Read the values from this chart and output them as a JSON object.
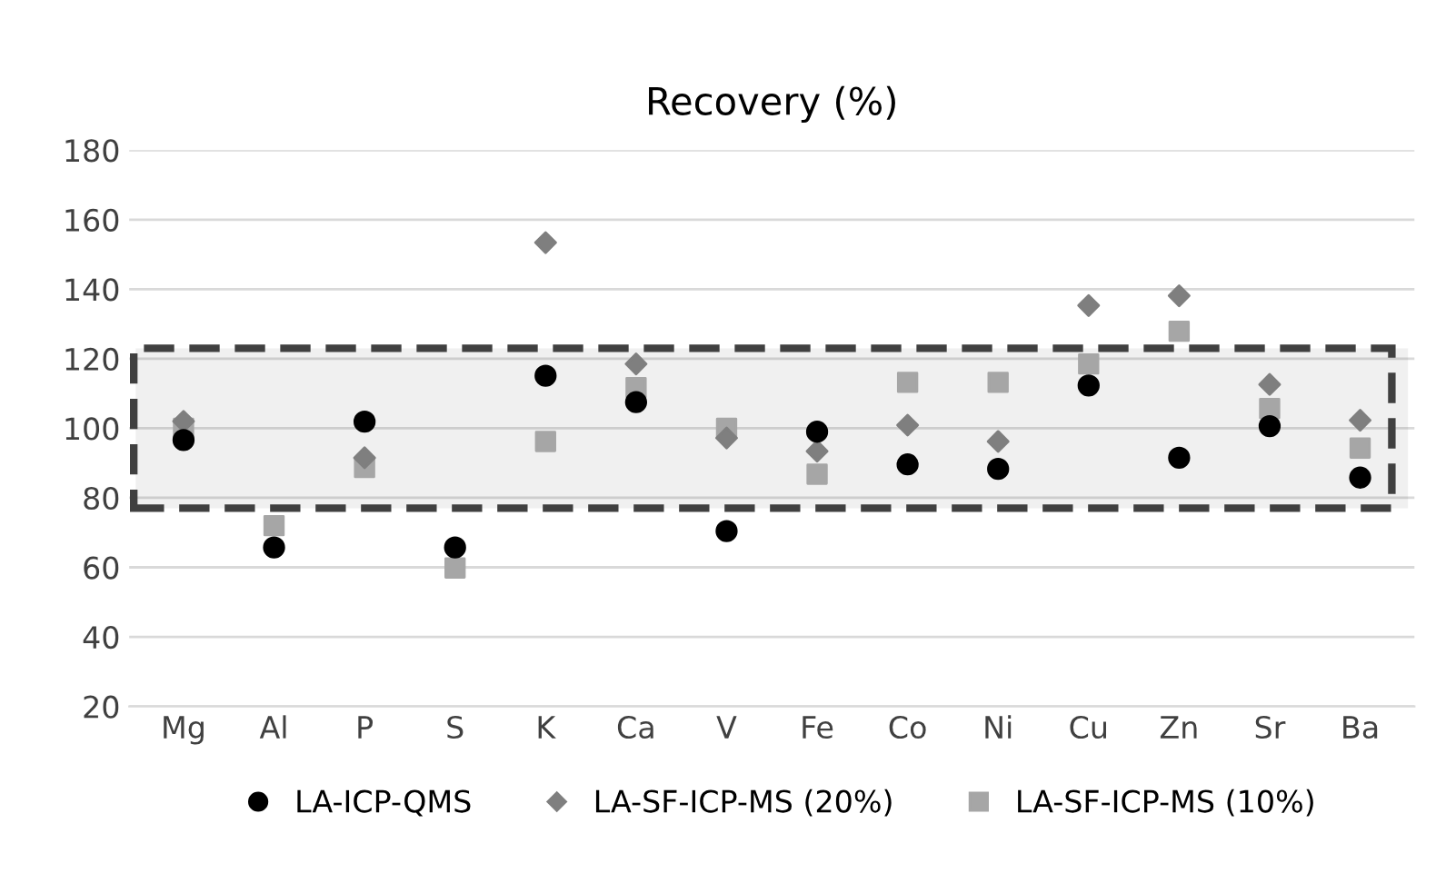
{
  "chart_data": {
    "type": "scatter",
    "title": "Recovery (%)",
    "categories": [
      "Mg",
      "Al",
      "P",
      "S",
      "K",
      "Ca",
      "V",
      "Fe",
      "Co",
      "Ni",
      "Cu",
      "Zn",
      "Sr",
      "Ba"
    ],
    "series": [
      {
        "name": "LA-ICP-QMS",
        "color": "#000000",
        "marker": "circle",
        "values": [
          96.6,
          65.7,
          101.9,
          65.7,
          115.1,
          107.5,
          70.4,
          99,
          89.6,
          88.3,
          112.3,
          91.5,
          100.6,
          85.8
        ]
      },
      {
        "name": "LA-SF-ICP-MS (20%)",
        "color": "#7f7f7f",
        "marker": "diamond",
        "values": [
          102,
          null,
          91.5,
          null,
          153.4,
          118.5,
          97.2,
          93.4,
          100.9,
          96.2,
          135.3,
          138.1,
          112.6,
          102.3
        ]
      },
      {
        "name": "LA-SF-ICP-MS (10%)",
        "color": "#a6a6a6",
        "marker": "square",
        "values": [
          100,
          72,
          88.7,
          59.8,
          96.2,
          111.7,
          100,
          86.8,
          113.2,
          113.2,
          118.5,
          127.9,
          105.7,
          94.3
        ]
      }
    ],
    "ylim": [
      20,
      180
    ],
    "yticks": [
      20,
      40,
      60,
      80,
      100,
      120,
      140,
      160,
      180
    ],
    "grid": "y",
    "legend": "bottom",
    "bands": [
      {
        "axis": "y",
        "from": 77,
        "to": 123,
        "color": "#404040"
      }
    ]
  }
}
